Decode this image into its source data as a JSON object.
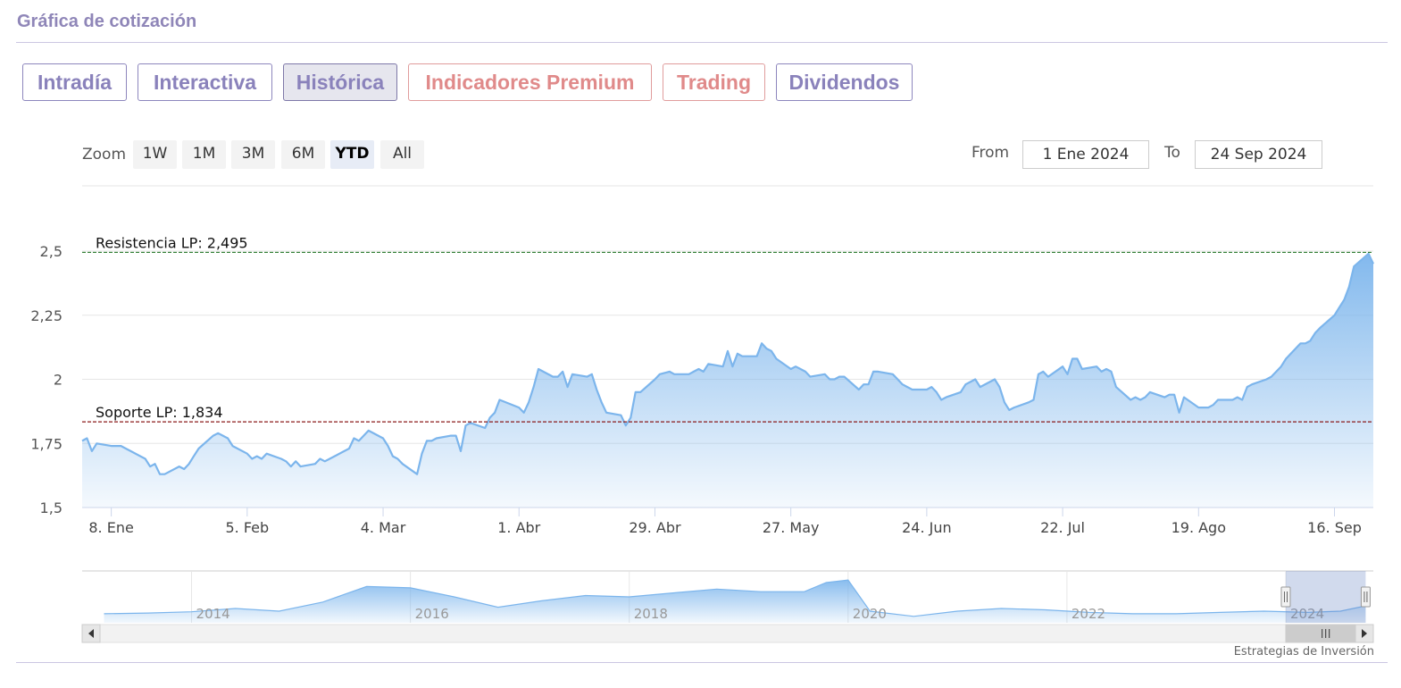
{
  "panel": {
    "title": "Gráfica de cotización"
  },
  "tabs": [
    {
      "label": "Intradía",
      "state": "normal"
    },
    {
      "label": "Interactiva",
      "state": "normal"
    },
    {
      "label": "Histórica",
      "state": "active"
    },
    {
      "label": "Indicadores Premium",
      "state": "premium"
    },
    {
      "label": "Trading",
      "state": "premium"
    },
    {
      "label": "Dividendos",
      "state": "normal"
    }
  ],
  "zoom": {
    "label": "Zoom",
    "buttons": [
      "1W",
      "1M",
      "3M",
      "6M",
      "YTD",
      "All"
    ],
    "selected": "YTD"
  },
  "range": {
    "from_label": "From",
    "from_value": "1 Ene 2024",
    "to_label": "To",
    "to_value": "24 Sep 2024"
  },
  "credits": "Estrategias de Inversión",
  "colors": {
    "tab_border": "#8d86bd",
    "tab_text": "#8a82bb",
    "premium": "#e08a8a",
    "series_line": "#7cb5ec",
    "resistance": "#2e7d32",
    "support": "#8b1a1a"
  },
  "chart_data": {
    "type": "area",
    "ylim": [
      1.5,
      2.5
    ],
    "y_ticks": [
      {
        "value": 1.5,
        "label": "1,5"
      },
      {
        "value": 1.75,
        "label": "1,75"
      },
      {
        "value": 2,
        "label": "2"
      },
      {
        "value": 2.25,
        "label": "2,25"
      },
      {
        "value": 2.5,
        "label": "2,5"
      }
    ],
    "x_domain": [
      "2024-01-02",
      "2024-09-24"
    ],
    "x_ticks": [
      {
        "date": "2024-01-08",
        "label": "8. Ene"
      },
      {
        "date": "2024-02-05",
        "label": "5. Feb"
      },
      {
        "date": "2024-03-04",
        "label": "4. Mar"
      },
      {
        "date": "2024-04-01",
        "label": "1. Abr"
      },
      {
        "date": "2024-04-29",
        "label": "29. Abr"
      },
      {
        "date": "2024-05-27",
        "label": "27. May"
      },
      {
        "date": "2024-06-24",
        "label": "24. Jun"
      },
      {
        "date": "2024-07-22",
        "label": "22. Jul"
      },
      {
        "date": "2024-08-19",
        "label": "19. Ago"
      },
      {
        "date": "2024-09-16",
        "label": "16. Sep"
      }
    ],
    "series": [
      {
        "points": [
          [
            "2024-01-02",
            1.76
          ],
          [
            "2024-01-03",
            1.77
          ],
          [
            "2024-01-04",
            1.72
          ],
          [
            "2024-01-05",
            1.75
          ],
          [
            "2024-01-08",
            1.74
          ],
          [
            "2024-01-09",
            1.74
          ],
          [
            "2024-01-10",
            1.74
          ],
          [
            "2024-01-11",
            1.73
          ],
          [
            "2024-01-12",
            1.72
          ],
          [
            "2024-01-15",
            1.69
          ],
          [
            "2024-01-16",
            1.66
          ],
          [
            "2024-01-17",
            1.67
          ],
          [
            "2024-01-18",
            1.63
          ],
          [
            "2024-01-19",
            1.63
          ],
          [
            "2024-01-22",
            1.66
          ],
          [
            "2024-01-23",
            1.65
          ],
          [
            "2024-01-24",
            1.67
          ],
          [
            "2024-01-25",
            1.7
          ],
          [
            "2024-01-26",
            1.73
          ],
          [
            "2024-01-29",
            1.78
          ],
          [
            "2024-01-30",
            1.79
          ],
          [
            "2024-01-31",
            1.78
          ],
          [
            "2024-02-01",
            1.77
          ],
          [
            "2024-02-02",
            1.74
          ],
          [
            "2024-02-05",
            1.71
          ],
          [
            "2024-02-06",
            1.69
          ],
          [
            "2024-02-07",
            1.7
          ],
          [
            "2024-02-08",
            1.69
          ],
          [
            "2024-02-09",
            1.71
          ],
          [
            "2024-02-12",
            1.69
          ],
          [
            "2024-02-13",
            1.68
          ],
          [
            "2024-02-14",
            1.66
          ],
          [
            "2024-02-15",
            1.68
          ],
          [
            "2024-02-16",
            1.66
          ],
          [
            "2024-02-19",
            1.67
          ],
          [
            "2024-02-20",
            1.69
          ],
          [
            "2024-02-21",
            1.68
          ],
          [
            "2024-02-22",
            1.69
          ],
          [
            "2024-02-23",
            1.7
          ],
          [
            "2024-02-26",
            1.73
          ],
          [
            "2024-02-27",
            1.77
          ],
          [
            "2024-02-28",
            1.76
          ],
          [
            "2024-02-29",
            1.78
          ],
          [
            "2024-03-01",
            1.8
          ],
          [
            "2024-03-04",
            1.77
          ],
          [
            "2024-03-05",
            1.74
          ],
          [
            "2024-03-06",
            1.7
          ],
          [
            "2024-03-07",
            1.69
          ],
          [
            "2024-03-08",
            1.67
          ],
          [
            "2024-03-11",
            1.63
          ],
          [
            "2024-03-12",
            1.71
          ],
          [
            "2024-03-13",
            1.76
          ],
          [
            "2024-03-14",
            1.76
          ],
          [
            "2024-03-15",
            1.77
          ],
          [
            "2024-03-18",
            1.78
          ],
          [
            "2024-03-19",
            1.78
          ],
          [
            "2024-03-20",
            1.72
          ],
          [
            "2024-03-21",
            1.82
          ],
          [
            "2024-03-22",
            1.83
          ],
          [
            "2024-03-25",
            1.81
          ],
          [
            "2024-03-26",
            1.85
          ],
          [
            "2024-03-27",
            1.87
          ],
          [
            "2024-03-28",
            1.92
          ],
          [
            "2024-04-01",
            1.89
          ],
          [
            "2024-04-02",
            1.87
          ],
          [
            "2024-04-03",
            1.91
          ],
          [
            "2024-04-04",
            1.97
          ],
          [
            "2024-04-05",
            2.04
          ],
          [
            "2024-04-08",
            2.01
          ],
          [
            "2024-04-09",
            2.01
          ],
          [
            "2024-04-10",
            2.03
          ],
          [
            "2024-04-11",
            1.97
          ],
          [
            "2024-04-12",
            2.02
          ],
          [
            "2024-04-15",
            2.01
          ],
          [
            "2024-04-16",
            2.02
          ],
          [
            "2024-04-17",
            1.96
          ],
          [
            "2024-04-18",
            1.91
          ],
          [
            "2024-04-19",
            1.87
          ],
          [
            "2024-04-22",
            1.86
          ],
          [
            "2024-04-23",
            1.82
          ],
          [
            "2024-04-24",
            1.85
          ],
          [
            "2024-04-25",
            1.95
          ],
          [
            "2024-04-26",
            1.95
          ],
          [
            "2024-04-29",
            2.0
          ],
          [
            "2024-04-30",
            2.02
          ],
          [
            "2024-05-02",
            2.03
          ],
          [
            "2024-05-03",
            2.02
          ],
          [
            "2024-05-06",
            2.02
          ],
          [
            "2024-05-07",
            2.03
          ],
          [
            "2024-05-08",
            2.04
          ],
          [
            "2024-05-09",
            2.03
          ],
          [
            "2024-05-10",
            2.06
          ],
          [
            "2024-05-13",
            2.05
          ],
          [
            "2024-05-14",
            2.11
          ],
          [
            "2024-05-15",
            2.05
          ],
          [
            "2024-05-16",
            2.1
          ],
          [
            "2024-05-17",
            2.09
          ],
          [
            "2024-05-20",
            2.09
          ],
          [
            "2024-05-21",
            2.14
          ],
          [
            "2024-05-22",
            2.12
          ],
          [
            "2024-05-23",
            2.11
          ],
          [
            "2024-05-24",
            2.08
          ],
          [
            "2024-05-27",
            2.04
          ],
          [
            "2024-05-28",
            2.05
          ],
          [
            "2024-05-29",
            2.04
          ],
          [
            "2024-05-30",
            2.03
          ],
          [
            "2024-05-31",
            2.01
          ],
          [
            "2024-06-03",
            2.02
          ],
          [
            "2024-06-04",
            2.0
          ],
          [
            "2024-06-05",
            2.0
          ],
          [
            "2024-06-06",
            2.01
          ],
          [
            "2024-06-07",
            2.01
          ],
          [
            "2024-06-10",
            1.96
          ],
          [
            "2024-06-11",
            1.98
          ],
          [
            "2024-06-12",
            1.98
          ],
          [
            "2024-06-13",
            2.03
          ],
          [
            "2024-06-14",
            2.03
          ],
          [
            "2024-06-17",
            2.02
          ],
          [
            "2024-06-18",
            2.0
          ],
          [
            "2024-06-19",
            1.98
          ],
          [
            "2024-06-20",
            1.97
          ],
          [
            "2024-06-21",
            1.96
          ],
          [
            "2024-06-24",
            1.96
          ],
          [
            "2024-06-25",
            1.97
          ],
          [
            "2024-06-26",
            1.95
          ],
          [
            "2024-06-27",
            1.92
          ],
          [
            "2024-06-28",
            1.93
          ],
          [
            "2024-07-01",
            1.95
          ],
          [
            "2024-07-02",
            1.98
          ],
          [
            "2024-07-03",
            1.99
          ],
          [
            "2024-07-04",
            2.0
          ],
          [
            "2024-07-05",
            1.97
          ],
          [
            "2024-07-08",
            2.0
          ],
          [
            "2024-07-09",
            1.97
          ],
          [
            "2024-07-10",
            1.91
          ],
          [
            "2024-07-11",
            1.88
          ],
          [
            "2024-07-12",
            1.89
          ],
          [
            "2024-07-15",
            1.91
          ],
          [
            "2024-07-16",
            1.92
          ],
          [
            "2024-07-17",
            2.02
          ],
          [
            "2024-07-18",
            2.03
          ],
          [
            "2024-07-19",
            2.01
          ],
          [
            "2024-07-22",
            2.05
          ],
          [
            "2024-07-23",
            2.02
          ],
          [
            "2024-07-24",
            2.08
          ],
          [
            "2024-07-25",
            2.08
          ],
          [
            "2024-07-26",
            2.04
          ],
          [
            "2024-07-29",
            2.05
          ],
          [
            "2024-07-30",
            2.03
          ],
          [
            "2024-07-31",
            2.04
          ],
          [
            "2024-08-01",
            2.03
          ],
          [
            "2024-08-02",
            1.97
          ],
          [
            "2024-08-05",
            1.92
          ],
          [
            "2024-08-06",
            1.93
          ],
          [
            "2024-08-07",
            1.92
          ],
          [
            "2024-08-08",
            1.93
          ],
          [
            "2024-08-09",
            1.95
          ],
          [
            "2024-08-12",
            1.93
          ],
          [
            "2024-08-13",
            1.94
          ],
          [
            "2024-08-14",
            1.94
          ],
          [
            "2024-08-15",
            1.87
          ],
          [
            "2024-08-16",
            1.93
          ],
          [
            "2024-08-19",
            1.89
          ],
          [
            "2024-08-20",
            1.89
          ],
          [
            "2024-08-21",
            1.89
          ],
          [
            "2024-08-22",
            1.9
          ],
          [
            "2024-08-23",
            1.92
          ],
          [
            "2024-08-26",
            1.92
          ],
          [
            "2024-08-27",
            1.93
          ],
          [
            "2024-08-28",
            1.92
          ],
          [
            "2024-08-29",
            1.97
          ],
          [
            "2024-08-30",
            1.98
          ],
          [
            "2024-09-02",
            2.0
          ],
          [
            "2024-09-03",
            2.01
          ],
          [
            "2024-09-04",
            2.03
          ],
          [
            "2024-09-05",
            2.05
          ],
          [
            "2024-09-06",
            2.08
          ],
          [
            "2024-09-09",
            2.14
          ],
          [
            "2024-09-10",
            2.14
          ],
          [
            "2024-09-11",
            2.15
          ],
          [
            "2024-09-12",
            2.18
          ],
          [
            "2024-09-13",
            2.2
          ],
          [
            "2024-09-16",
            2.25
          ],
          [
            "2024-09-17",
            2.28
          ],
          [
            "2024-09-18",
            2.31
          ],
          [
            "2024-09-19",
            2.36
          ],
          [
            "2024-09-20",
            2.44
          ],
          [
            "2024-09-23",
            2.49
          ],
          [
            "2024-09-24",
            2.45
          ]
        ]
      }
    ],
    "reference_lines": [
      {
        "label": "Resistencia LP: 2,495",
        "value": 2.495,
        "color": "#2e7d32"
      },
      {
        "label": "Soporte LP: 1,834",
        "value": 1.834,
        "color": "#8b1a1a"
      }
    ],
    "navigator": {
      "x_ticks": [
        "2014",
        "2016",
        "2018",
        "2020",
        "2022",
        "2024"
      ],
      "ylim": [
        1,
        5
      ],
      "series": [
        [
          2013.2,
          1.7
        ],
        [
          2013.6,
          1.75
        ],
        [
          2014.0,
          1.85
        ],
        [
          2014.4,
          2.1
        ],
        [
          2014.8,
          1.9
        ],
        [
          2015.2,
          2.6
        ],
        [
          2015.6,
          3.8
        ],
        [
          2016.0,
          3.7
        ],
        [
          2016.4,
          3.0
        ],
        [
          2016.8,
          2.2
        ],
        [
          2017.2,
          2.7
        ],
        [
          2017.6,
          3.1
        ],
        [
          2018.0,
          3.0
        ],
        [
          2018.4,
          3.3
        ],
        [
          2018.8,
          3.6
        ],
        [
          2019.2,
          3.4
        ],
        [
          2019.6,
          3.4
        ],
        [
          2019.8,
          4.1
        ],
        [
          2020.0,
          4.3
        ],
        [
          2020.2,
          1.9
        ],
        [
          2020.6,
          1.5
        ],
        [
          2021.0,
          1.9
        ],
        [
          2021.4,
          2.1
        ],
        [
          2021.8,
          2.0
        ],
        [
          2022.2,
          1.8
        ],
        [
          2022.6,
          1.7
        ],
        [
          2023.0,
          1.7
        ],
        [
          2023.4,
          1.8
        ],
        [
          2023.8,
          1.9
        ],
        [
          2024.2,
          1.8
        ],
        [
          2024.5,
          1.9
        ],
        [
          2024.73,
          2.3
        ]
      ],
      "window": [
        "2024.0",
        "2024.73"
      ]
    }
  }
}
